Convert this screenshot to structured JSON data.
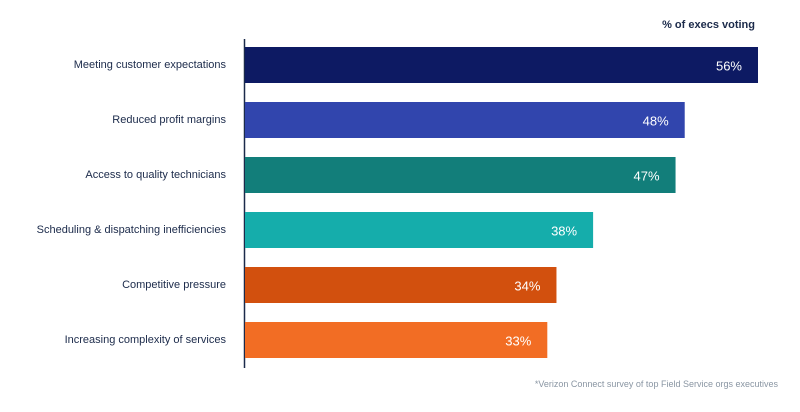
{
  "chart_data": {
    "type": "bar",
    "orientation": "horizontal",
    "value_heading": "% of execs voting",
    "categories": [
      "Meeting customer expectations",
      "Reduced profit margins",
      "Access to quality technicians",
      "Scheduling & dispatching inefficiencies",
      "Competitive pressure",
      "Increasing complexity of services"
    ],
    "values": [
      56,
      48,
      47,
      38,
      34,
      33
    ],
    "value_labels": [
      "56%",
      "48%",
      "47%",
      "38%",
      "34%",
      "33%"
    ],
    "colors": [
      "#0d1a63",
      "#3145ad",
      "#127e7a",
      "#15adab",
      "#d2500e",
      "#f26d24"
    ],
    "xlim": [
      0,
      56
    ],
    "grid": false,
    "footnote": "*Verizon Connect survey of top Field Service orgs executives"
  }
}
